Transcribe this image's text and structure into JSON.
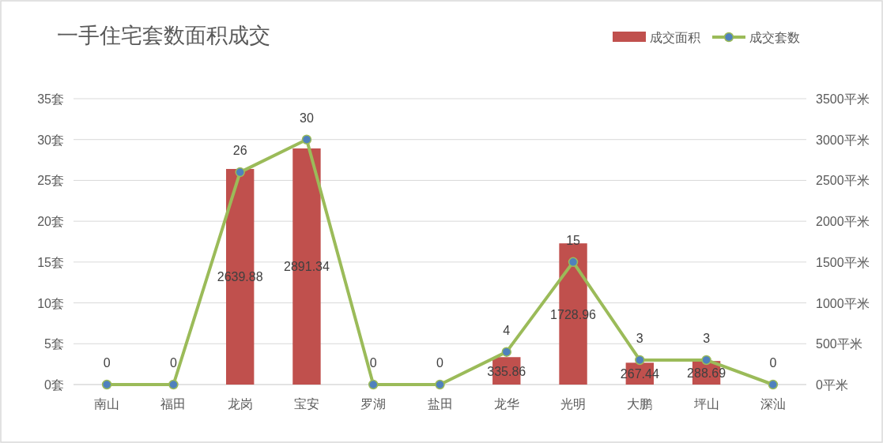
{
  "chart_data": {
    "type": "bar",
    "title": "一手住宅套数面积成交",
    "categories": [
      "南山",
      "福田",
      "龙岗",
      "宝安",
      "罗湖",
      "盐田",
      "龙华",
      "光明",
      "大鹏",
      "坪山",
      "深汕"
    ],
    "series": [
      {
        "name": "成交面积",
        "axis": "y2",
        "color": "#c0504d",
        "values": [
          0,
          0,
          2639.88,
          2891.34,
          0,
          0,
          335.86,
          1728.96,
          267.44,
          288.69,
          0
        ],
        "value_labels": [
          null,
          null,
          "2639.88",
          "2891.34",
          null,
          null,
          "335.86",
          "1728.96",
          "267.44",
          "288.69",
          null
        ]
      },
      {
        "name": "成交套数",
        "type": "line",
        "color": "#9bbb59",
        "values": [
          0,
          0,
          26,
          30,
          0,
          0,
          4,
          15,
          3,
          3,
          0
        ],
        "value_labels": [
          "0",
          "0",
          "26",
          "30",
          "0",
          "0",
          "4",
          "15",
          "3",
          "3",
          "0"
        ]
      }
    ],
    "ylim": [
      0,
      35
    ],
    "yticks": [
      {
        "value": 0,
        "label": "0套"
      },
      {
        "value": 5,
        "label": "5套"
      },
      {
        "value": 10,
        "label": "10套"
      },
      {
        "value": 15,
        "label": "15套"
      },
      {
        "value": 20,
        "label": "20套"
      },
      {
        "value": 25,
        "label": "25套"
      },
      {
        "value": 30,
        "label": "30套"
      },
      {
        "value": 35,
        "label": "35套"
      }
    ],
    "y2lim": [
      0,
      3500
    ],
    "y2ticks": [
      {
        "value": 0,
        "label": "0平米"
      },
      {
        "value": 500,
        "label": "500平米"
      },
      {
        "value": 1000,
        "label": "1000平米"
      },
      {
        "value": 1500,
        "label": "1500平米"
      },
      {
        "value": 2000,
        "label": "2000平米"
      },
      {
        "value": 2500,
        "label": "2500平米"
      },
      {
        "value": 3000,
        "label": "3000平米"
      },
      {
        "value": 3500,
        "label": "3500平米"
      }
    ],
    "grid": "y",
    "legend": "top right",
    "marker": "circle",
    "line_style": "solid"
  }
}
